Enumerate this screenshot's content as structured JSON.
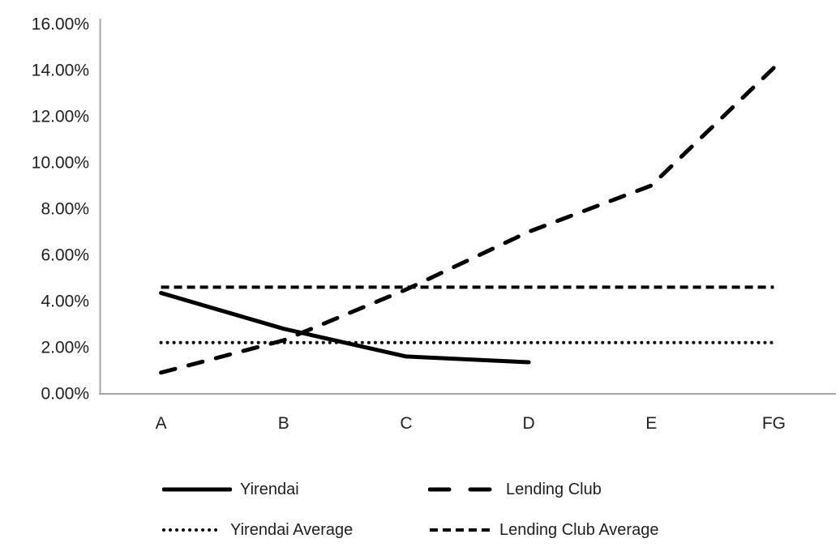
{
  "chart_data": {
    "type": "line",
    "title": "",
    "xlabel": "",
    "ylabel": "",
    "categories": [
      "A",
      "B",
      "C",
      "D",
      "E",
      "FG"
    ],
    "series": [
      {
        "name": "Yirendai",
        "style": "solid",
        "stroke_width": 5,
        "values": [
          4.35,
          2.8,
          1.6,
          1.35,
          null,
          null
        ]
      },
      {
        "name": "Lending Club",
        "style": "dash",
        "stroke_width": 5,
        "values": [
          0.9,
          2.3,
          4.5,
          7.0,
          9.0,
          14.1
        ]
      },
      {
        "name": "Yirendai Average",
        "style": "dot",
        "stroke_width": 4,
        "values": [
          2.2,
          2.2,
          2.2,
          2.2,
          2.2,
          2.2
        ]
      },
      {
        "name": "Lending Club Average",
        "style": "dense-dash",
        "stroke_width": 4,
        "values": [
          4.6,
          4.6,
          4.6,
          4.6,
          4.6,
          4.6
        ]
      }
    ],
    "y_axis": {
      "min": 0,
      "max": 16,
      "step": 2,
      "tick_labels": [
        "0.00%",
        "2.00%",
        "4.00%",
        "6.00%",
        "8.00%",
        "10.00%",
        "12.00%",
        "14.00%",
        "16.00%"
      ]
    },
    "x_axis": {
      "tick_labels": [
        "A",
        "B",
        "C",
        "D",
        "E",
        "FG"
      ]
    },
    "legend": {
      "position": "bottom",
      "entries": [
        "Yirendai",
        "Lending Club",
        "Yirendai Average",
        "Lending Club Average"
      ]
    },
    "colors": {
      "line": "#000000",
      "axis": "#a6a6a6",
      "text": "#1f1f1f"
    },
    "grid": "off"
  }
}
